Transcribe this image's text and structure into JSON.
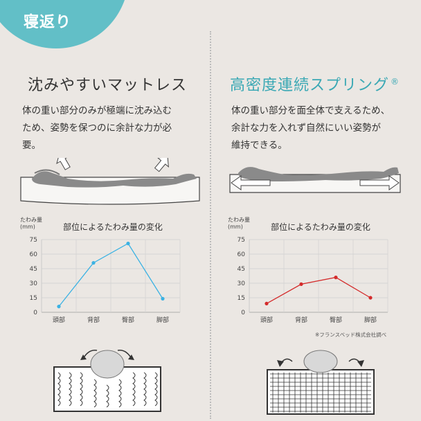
{
  "badge": {
    "label": "寝返り",
    "color": "#62bfc7"
  },
  "left": {
    "title": "沈みやすいマットレス",
    "description_lines": [
      "体の重い部分のみが極端に沈み込む",
      "ため、姿勢を保つのに余計な力が必",
      "要。"
    ]
  },
  "right": {
    "title": "高密度連続スプリング",
    "title_mark": "®",
    "description_lines": [
      "体の重い部分を面全体で支えるため、",
      "余計な力を入れず自然にいい姿勢が",
      "維持できる。"
    ]
  },
  "footnote": "※フランスベッド株式会社調べ",
  "chart_data": [
    {
      "type": "line",
      "title": "部位によるたわみ量の変化",
      "ylabel": "たわみ量\n(mm)",
      "ylabel_lines": [
        "たわみ量",
        "(mm)"
      ],
      "categories": [
        "頭部",
        "背部",
        "臀部",
        "脚部"
      ],
      "yticks": [
        "75",
        "60",
        "45",
        "30",
        "15",
        "0"
      ],
      "ylim": [
        0,
        75
      ],
      "grid": true,
      "series": [
        {
          "values": [
            6,
            51,
            71,
            14
          ],
          "color": "#3bb2e3"
        }
      ]
    },
    {
      "type": "line",
      "title": "部位によるたわみ量の変化",
      "ylabel": "たわみ量\n(mm)",
      "ylabel_lines": [
        "たわみ量",
        "(mm)"
      ],
      "categories": [
        "頭部",
        "背部",
        "臀部",
        "脚部"
      ],
      "yticks": [
        "75",
        "60",
        "45",
        "30",
        "15",
        "0"
      ],
      "ylim": [
        0,
        75
      ],
      "grid": true,
      "series": [
        {
          "values": [
            9,
            29,
            36,
            15
          ],
          "color": "#d42b2b"
        }
      ]
    }
  ]
}
